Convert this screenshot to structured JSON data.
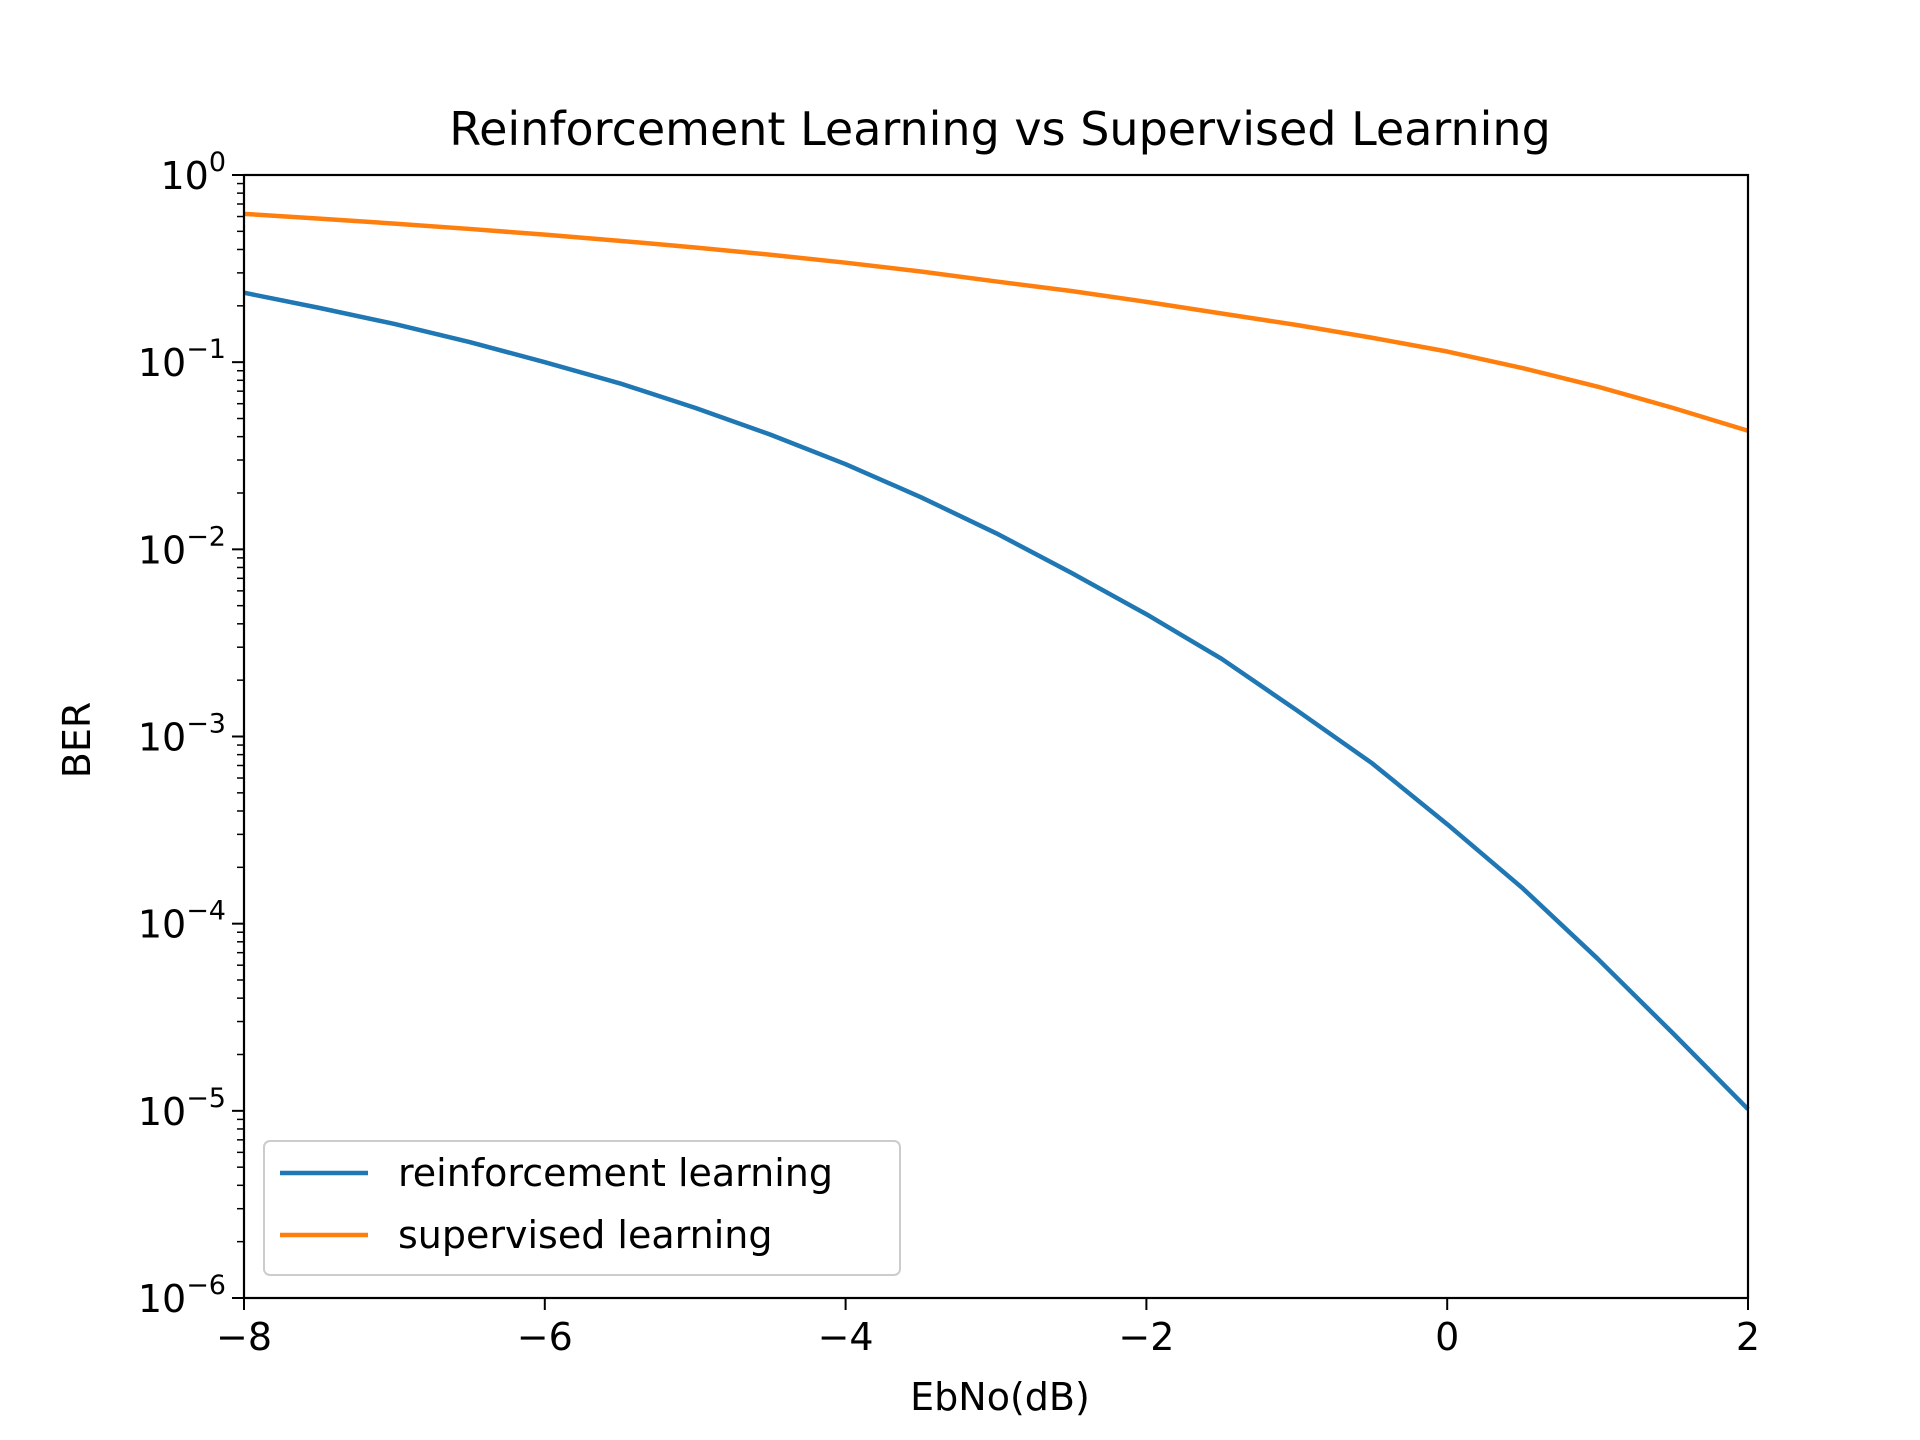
{
  "chart_data": {
    "type": "line",
    "title": "Reinforcement Learning vs Supervised Learning",
    "xlabel": "EbNo(dB)",
    "ylabel": "BER",
    "xlim": [
      -8,
      2
    ],
    "ylim": [
      1e-06,
      1
    ],
    "yscale": "log",
    "grid": false,
    "legend_position": "lower-left",
    "x_ticks": [
      -8,
      -6,
      -4,
      -2,
      0,
      2
    ],
    "x_tick_labels": [
      "−8",
      "−6",
      "−4",
      "−2",
      "0",
      "2"
    ],
    "y_tick_exponents": [
      0,
      -1,
      -2,
      -3,
      -4,
      -5,
      -6
    ],
    "y_tick_exponent_labels": [
      "0",
      "−1",
      "−2",
      "−3",
      "−4",
      "−5",
      "−6"
    ],
    "y_tick_base": "10",
    "x": [
      -8,
      -7.5,
      -7,
      -6.5,
      -6,
      -5.5,
      -5,
      -4.5,
      -4,
      -3.5,
      -3,
      -2.5,
      -2,
      -1.5,
      -1,
      -0.5,
      0,
      0.5,
      1,
      1.5,
      2
    ],
    "series": [
      {
        "name": "reinforcement learning",
        "color": "#1f77b4",
        "values": [
          0.235,
          0.195,
          0.16,
          0.128,
          0.1,
          0.077,
          0.057,
          0.041,
          0.0285,
          0.019,
          0.0122,
          0.0075,
          0.0045,
          0.0026,
          0.00138,
          0.00072,
          0.00034,
          0.000155,
          6.5e-05,
          2.6e-05,
          1.02e-05
        ]
      },
      {
        "name": "supervised learning",
        "color": "#ff7f0e",
        "values": [
          0.62,
          0.585,
          0.55,
          0.515,
          0.48,
          0.445,
          0.41,
          0.375,
          0.34,
          0.305,
          0.27,
          0.24,
          0.21,
          0.182,
          0.158,
          0.135,
          0.114,
          0.093,
          0.074,
          0.057,
          0.043
        ]
      }
    ]
  }
}
